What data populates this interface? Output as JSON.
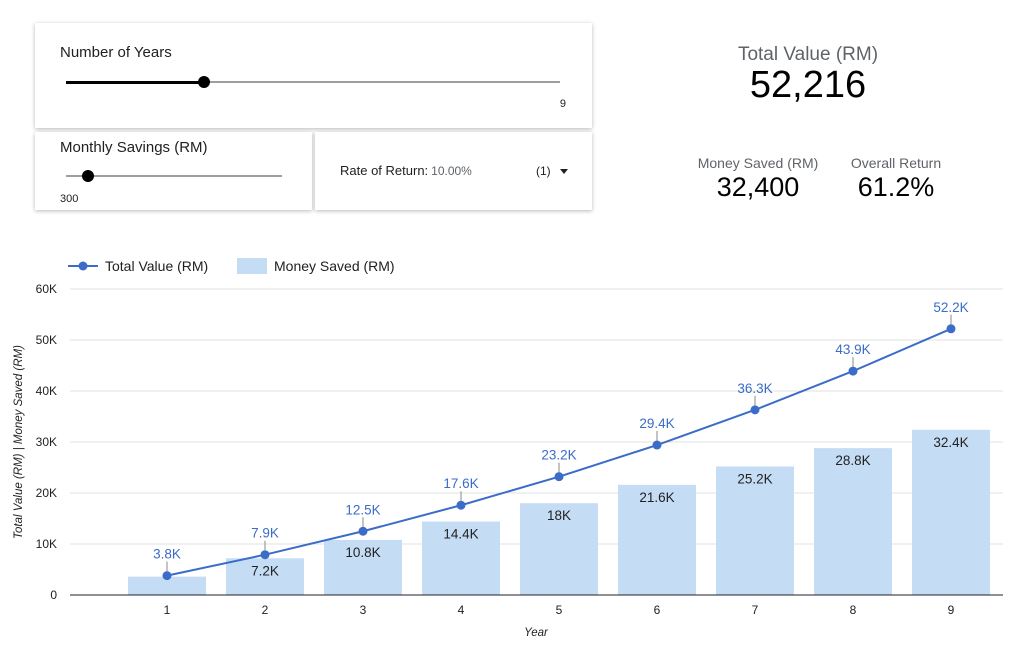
{
  "controls": {
    "years": {
      "label": "Number of Years",
      "value": "9",
      "fraction": 0.28
    },
    "savings": {
      "label": "Monthly Savings (RM)",
      "value": "300",
      "fraction": 0.1
    },
    "rate": {
      "label": "Rate of Return:",
      "value": "10.00%",
      "count": "(1)"
    }
  },
  "scorecards": {
    "total": {
      "label": "Total Value (RM)",
      "value": "52,216"
    },
    "saved": {
      "label": "Money Saved (RM)",
      "value": "32,400"
    },
    "overall": {
      "label": "Overall Return",
      "value": "61.2%"
    }
  },
  "colors": {
    "line": "#3a6cc8",
    "bar": "#c5dcf5",
    "grid": "#e0e0e0"
  },
  "chart_data": {
    "type": "bar",
    "categories": [
      "1",
      "2",
      "3",
      "4",
      "5",
      "6",
      "7",
      "8",
      "9"
    ],
    "series": [
      {
        "name": "Total Value (RM)",
        "type": "line",
        "values": [
          3800,
          7900,
          12500,
          17600,
          23200,
          29400,
          36300,
          43900,
          52200
        ],
        "labels": [
          "3.8K",
          "7.9K",
          "12.5K",
          "17.6K",
          "23.2K",
          "29.4K",
          "36.3K",
          "43.9K",
          "52.2K"
        ]
      },
      {
        "name": "Money Saved (RM)",
        "type": "bar",
        "values": [
          3600,
          7200,
          10800,
          14400,
          18000,
          21600,
          25200,
          28800,
          32400
        ],
        "labels": [
          "",
          "7.2K",
          "10.8K",
          "14.4K",
          "18K",
          "21.6K",
          "25.2K",
          "28.8K",
          "32.4K"
        ]
      }
    ],
    "xlabel": "Year",
    "ylabel": "Total Value (RM) | Money Saved (RM)",
    "ylim": [
      0,
      60000
    ],
    "yticks": [
      0,
      10000,
      20000,
      30000,
      40000,
      50000,
      60000
    ],
    "ytick_labels": [
      "0",
      "10K",
      "20K",
      "30K",
      "40K",
      "50K",
      "60K"
    ],
    "legend": "top-left",
    "grid": true
  }
}
